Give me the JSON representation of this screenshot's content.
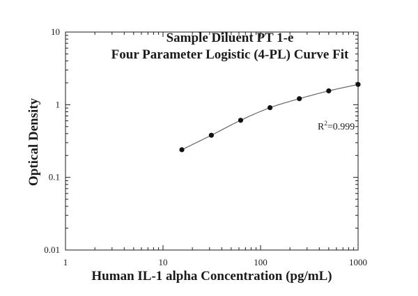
{
  "chart_data": {
    "type": "scatter",
    "title": [
      "Sample Diluent PT 1-e",
      "Four Parameter Logistic (4-PL) Curve Fit"
    ],
    "xlabel": "Human IL-1 alpha Concentration (pg/mL)",
    "ylabel": "Optical Density",
    "xscale": "log",
    "yscale": "log",
    "xlim": [
      1,
      1000
    ],
    "ylim": [
      0.01,
      10
    ],
    "xticks": [
      1,
      10,
      100,
      1000
    ],
    "xtick_labels": [
      "1",
      "10",
      "100",
      "1000"
    ],
    "yticks": [
      0.01,
      0.1,
      1,
      10
    ],
    "ytick_labels": [
      "0.01",
      "0.1",
      "1",
      "10"
    ],
    "grid": false,
    "series": [
      {
        "x": [
          15.6,
          31.3,
          62.5,
          125,
          250,
          500,
          1000
        ],
        "y": [
          0.24,
          0.38,
          0.61,
          0.91,
          1.21,
          1.55,
          1.9
        ],
        "fit": "4-PL"
      }
    ],
    "annotation": {
      "base": "R",
      "sup": "2",
      "value": "=0.999"
    },
    "colors": {
      "marker": "#111111",
      "curve": "#666666",
      "axis": "#1a1a1a"
    }
  }
}
